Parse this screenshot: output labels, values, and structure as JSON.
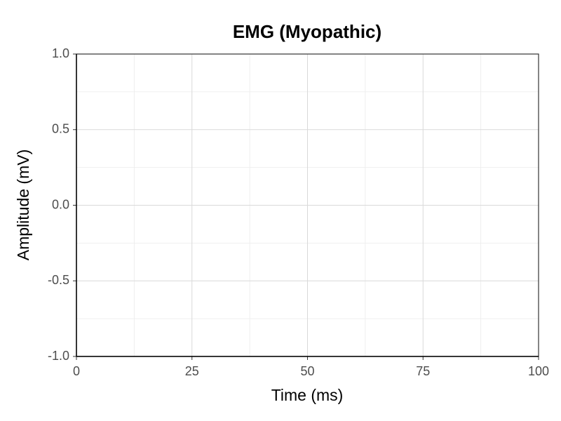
{
  "chart_data": {
    "type": "line",
    "title": "EMG (Myopathic)",
    "x_label": "Time (ms)",
    "y_label": "Amplitude (mV)",
    "xlim": [
      0,
      100
    ],
    "xticks": [
      0,
      25,
      50,
      75,
      100
    ],
    "ylim": [
      -1,
      1
    ],
    "yticks": [
      {
        "value": -1,
        "label": "-1.0"
      },
      -0.5,
      {
        "value": 0,
        "label": "0.0"
      },
      0.5,
      {
        "value": 1,
        "label": "1.0"
      }
    ],
    "grid": true
  }
}
